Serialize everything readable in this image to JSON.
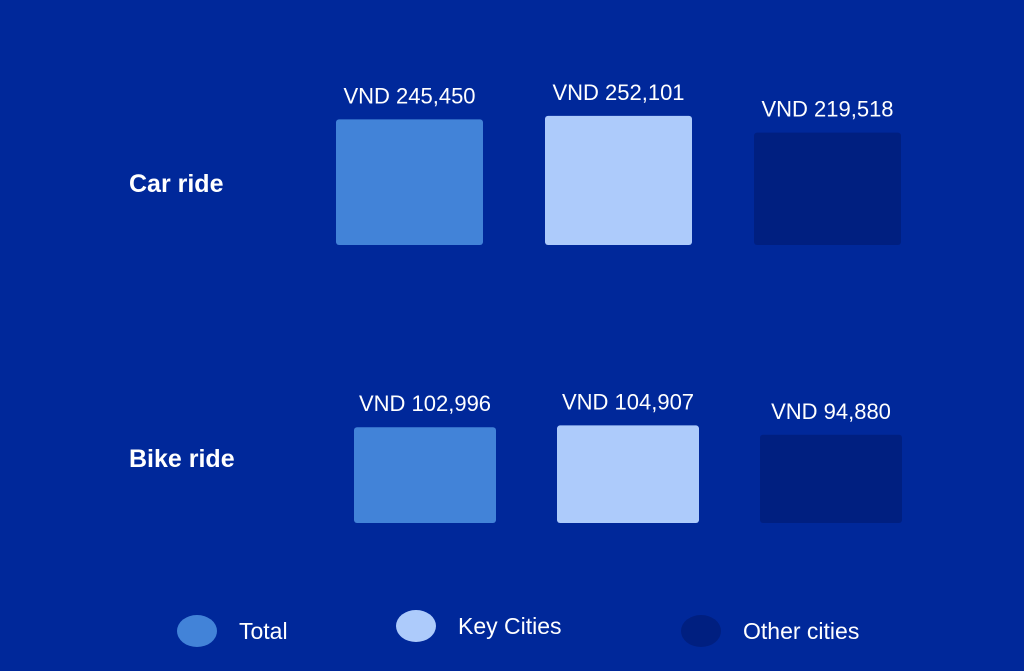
{
  "colors": {
    "background": "#00289a",
    "total": "#4283d8",
    "key_cities": "#adcbfb",
    "other_cities": "#001f80",
    "text": "#ffffff"
  },
  "chart_data": {
    "type": "bar",
    "orientation": "vertical-grouped",
    "categories": [
      "Car ride",
      "Bike ride"
    ],
    "series": [
      {
        "name": "Total",
        "values": [
          245450,
          102996
        ],
        "labels": [
          "VND 245,450",
          "VND 102,996"
        ]
      },
      {
        "name": "Key Cities",
        "values": [
          252101,
          104907
        ],
        "labels": [
          "VND 252,101",
          "VND 104,907"
        ]
      },
      {
        "name": "Other cities",
        "values": [
          219518,
          94880
        ],
        "labels": [
          "VND 219,518",
          "VND 94,880"
        ]
      }
    ],
    "unit": "VND",
    "grid": false,
    "legend_position": "bottom"
  },
  "legend": {
    "items": [
      {
        "label": "Total",
        "color": "#4283d8"
      },
      {
        "label": "Key Cities",
        "color": "#adcbfb"
      },
      {
        "label": "Other cities",
        "color": "#001f80"
      }
    ]
  }
}
